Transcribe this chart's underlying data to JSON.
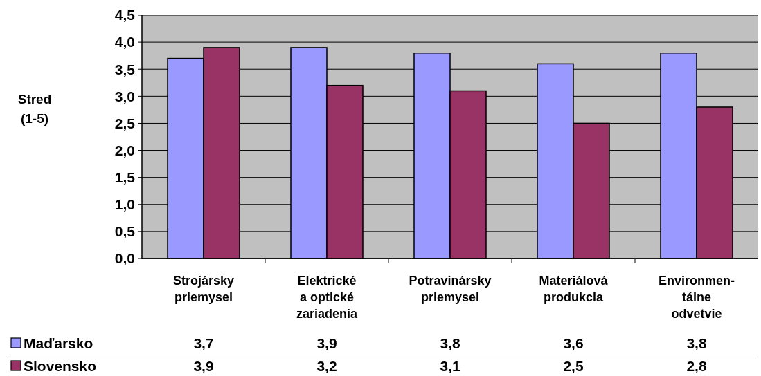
{
  "chart_data": {
    "type": "bar",
    "ylabel": "Stred (1-5)",
    "categories": [
      "Strojársky priemysel",
      "Elektrické a optické zariadenia",
      "Potravinársky priemysel",
      "Materiálová produkcia",
      "Environmen-tálne odvetvie"
    ],
    "series": [
      {
        "name": "Maďarsko",
        "color": "#9999ff",
        "values": [
          3.7,
          3.9,
          3.8,
          3.6,
          3.8
        ],
        "value_labels": [
          "3,7",
          "3,9",
          "3,8",
          "3,6",
          "3,8"
        ]
      },
      {
        "name": "Slovensko",
        "color": "#993366",
        "values": [
          3.9,
          3.2,
          3.1,
          2.5,
          2.8
        ],
        "value_labels": [
          "3,9",
          "3,2",
          "3,1",
          "2,5",
          "2,8"
        ]
      }
    ],
    "ylim": [
      0,
      4.5
    ],
    "yticks": [
      {
        "value": 0,
        "label": "0,0"
      },
      {
        "value": 0.5,
        "label": "0,5"
      },
      {
        "value": 1,
        "label": "1,0"
      },
      {
        "value": 1.5,
        "label": "1,5"
      },
      {
        "value": 2,
        "label": "2,0"
      },
      {
        "value": 2.5,
        "label": "2,5"
      },
      {
        "value": 3,
        "label": "3,0"
      },
      {
        "value": 3.5,
        "label": "3,5"
      },
      {
        "value": 4,
        "label": "4,0"
      },
      {
        "value": 4.5,
        "label": "4,5"
      }
    ],
    "grid": "y",
    "legend": "bottom"
  }
}
